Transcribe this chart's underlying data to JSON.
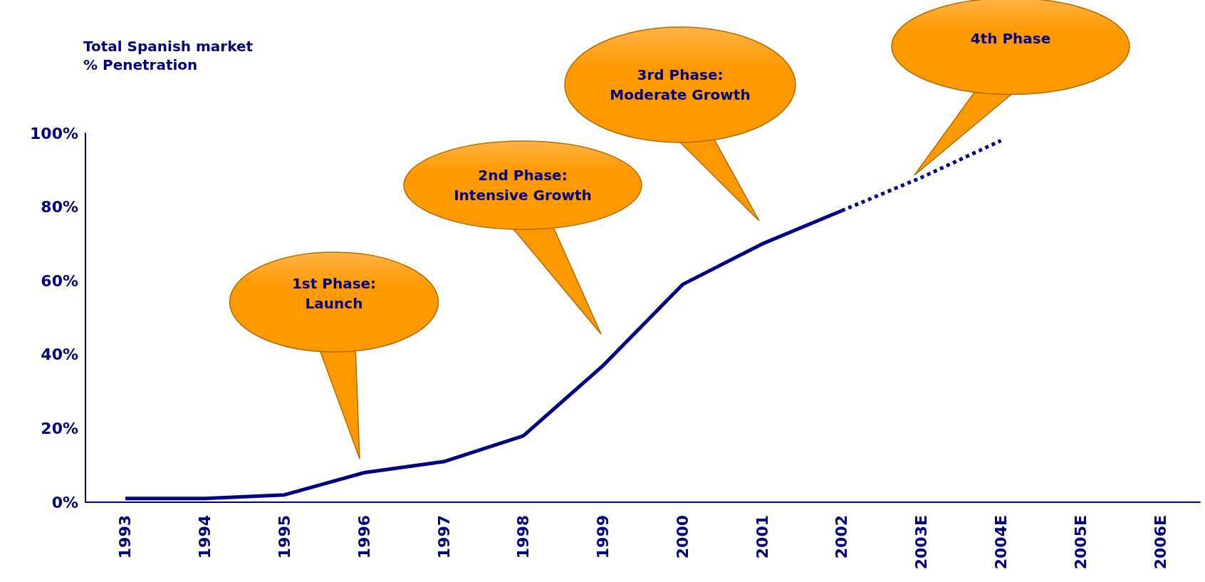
{
  "chart_data": {
    "type": "line",
    "title": "Total Spanish market",
    "subtitle": "% Penetration",
    "categories": [
      "1993",
      "1994",
      "1995",
      "1996",
      "1997",
      "1998",
      "1999",
      "2000",
      "2001",
      "2002",
      "2003E",
      "2004E",
      "2005E",
      "2006E"
    ],
    "series": [
      {
        "color": "#000080",
        "line_style": "solid",
        "values": [
          1,
          1,
          2,
          8,
          11,
          18,
          37,
          59,
          70,
          79,
          null,
          null,
          null,
          null
        ]
      },
      {
        "color": "#000080",
        "line_style": "dotted",
        "values": [
          null,
          null,
          null,
          null,
          null,
          null,
          null,
          null,
          null,
          79,
          88,
          98,
          null,
          null
        ]
      }
    ],
    "ylim": [
      0,
      100
    ],
    "yticks": [
      {
        "value": 0,
        "label": "0%"
      },
      {
        "value": 20,
        "label": "20%"
      },
      {
        "value": 40,
        "label": "40%"
      },
      {
        "value": 60,
        "label": "60%"
      },
      {
        "value": 80,
        "label": "80%"
      },
      {
        "value": 100,
        "label": "100%"
      }
    ],
    "annotations": [
      "1st Phase:\nLaunch",
      "2nd Phase:\nIntensive Growth",
      "3rd Phase:\nModerate Growth",
      "4th Phase"
    ],
    "grid": false,
    "marker": "none"
  }
}
